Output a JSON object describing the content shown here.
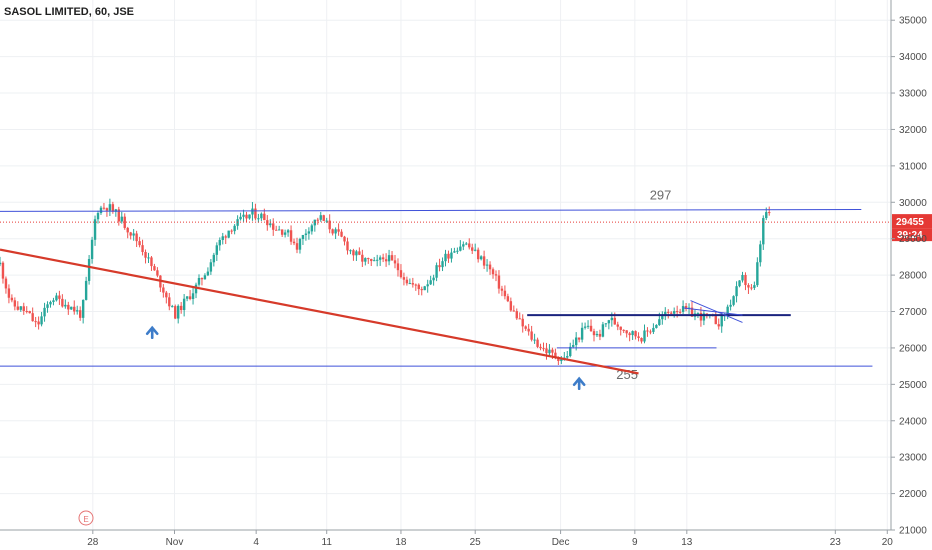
{
  "header": {
    "title": "SASOL LIMITED, 60, JSE"
  },
  "chart_data": {
    "type": "candlestick",
    "symbol": "SASOL LIMITED",
    "interval": "60",
    "exchange": "JSE",
    "ylim": [
      21000,
      35500
    ],
    "y_ticks": [
      21000,
      22000,
      23000,
      24000,
      25000,
      26000,
      27000,
      28000,
      29000,
      30000,
      31000,
      32000,
      33000,
      34000,
      35000
    ],
    "x_ticks": [
      "28",
      "Nov",
      "4",
      "11",
      "18",
      "25",
      "Dec",
      "9",
      "13",
      "23",
      "20"
    ],
    "last_price": "29455",
    "countdown": "39:24",
    "event_marker": "E",
    "price_path": [
      [
        0,
        28300
      ],
      [
        3,
        27200
      ],
      [
        7,
        27000
      ],
      [
        10,
        26600
      ],
      [
        14,
        27400
      ],
      [
        18,
        27200
      ],
      [
        22,
        26900
      ],
      [
        26,
        29800
      ],
      [
        29,
        29900
      ],
      [
        32,
        29600
      ],
      [
        35,
        29200
      ],
      [
        38,
        28800
      ],
      [
        41,
        28200
      ],
      [
        44,
        27600
      ],
      [
        47,
        26900
      ],
      [
        50,
        27300
      ],
      [
        53,
        27700
      ],
      [
        56,
        28200
      ],
      [
        59,
        28900
      ],
      [
        62,
        29300
      ],
      [
        65,
        29500
      ],
      [
        68,
        29700
      ],
      [
        71,
        29600
      ],
      [
        74,
        29300
      ],
      [
        77,
        29200
      ],
      [
        80,
        28800
      ],
      [
        83,
        29300
      ],
      [
        86,
        29600
      ],
      [
        89,
        29300
      ],
      [
        92,
        29000
      ],
      [
        95,
        28600
      ],
      [
        98,
        28400
      ],
      [
        101,
        28300
      ],
      [
        104,
        28500
      ],
      [
        107,
        28200
      ],
      [
        110,
        27800
      ],
      [
        113,
        27600
      ],
      [
        116,
        27900
      ],
      [
        119,
        28400
      ],
      [
        122,
        28700
      ],
      [
        125,
        28900
      ],
      [
        128,
        28600
      ],
      [
        131,
        28300
      ],
      [
        134,
        27800
      ],
      [
        137,
        27200
      ],
      [
        140,
        26700
      ],
      [
        143,
        26300
      ],
      [
        146,
        26000
      ],
      [
        149,
        25800
      ],
      [
        152,
        25700
      ],
      [
        155,
        26200
      ],
      [
        158,
        26600
      ],
      [
        161,
        26300
      ],
      [
        164,
        26800
      ],
      [
        167,
        26600
      ],
      [
        170,
        26400
      ],
      [
        173,
        26300
      ],
      [
        176,
        26600
      ],
      [
        179,
        26900
      ],
      [
        182,
        27100
      ],
      [
        185,
        27000
      ],
      [
        188,
        26900
      ],
      [
        191,
        26800
      ],
      [
        194,
        26700
      ],
      [
        197,
        27300
      ],
      [
        200,
        27900
      ],
      [
        203,
        27500
      ],
      [
        206,
        29800
      ],
      [
        208,
        29455
      ]
    ],
    "series": [
      {
        "name": "price"
      }
    ],
    "annotations": [
      {
        "type": "line",
        "label": "297",
        "from": [
          0,
          29750
        ],
        "to": [
          232,
          29800
        ]
      },
      {
        "type": "line",
        "label": "255",
        "from": [
          0,
          25500
        ],
        "to": [
          235,
          25500
        ]
      },
      {
        "type": "line",
        "label": "",
        "from": [
          0,
          28700
        ],
        "to": [
          172,
          25300
        ]
      },
      {
        "type": "line",
        "label": "",
        "from": [
          142,
          26900
        ],
        "to": [
          213,
          26900
        ]
      },
      {
        "type": "line",
        "label": "",
        "from": [
          150,
          26000
        ],
        "to": [
          193,
          26000
        ]
      },
      {
        "type": "line",
        "label": "",
        "from": [
          186,
          27300
        ],
        "to": [
          200,
          26700
        ]
      },
      {
        "type": "line",
        "label": "",
        "from": [
          184,
          27100
        ],
        "to": [
          200,
          26900
        ]
      }
    ],
    "arrows": [
      {
        "x": 41,
        "y": 26500
      },
      {
        "x": 156,
        "y": 25100
      }
    ],
    "grid": true,
    "colors": {
      "up": "#26a69a",
      "down": "#ef5350",
      "trend": "#d63a2a",
      "level": "#3f51d9",
      "level_dark": "#1a237e",
      "arrow": "#3d7cc9",
      "price_line": "#e53935"
    }
  }
}
